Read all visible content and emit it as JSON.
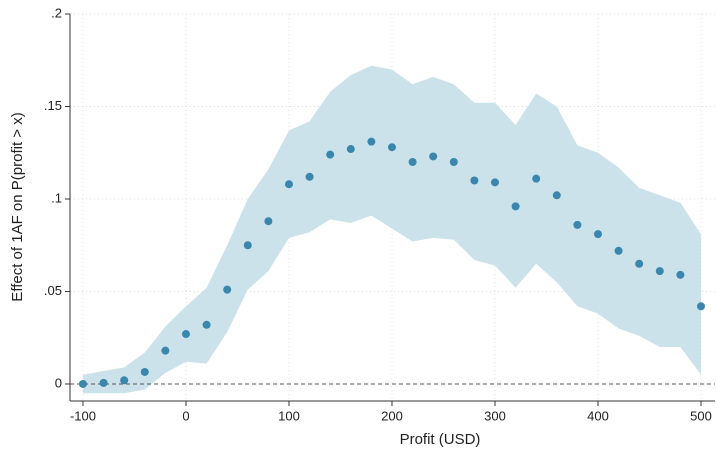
{
  "chart_data": {
    "type": "scatter",
    "x_label": "Profit (USD)",
    "y_label": "Effect of 1AF on P(profit > x)",
    "x": [
      -100,
      -80,
      -60,
      -40,
      -20,
      0,
      20,
      40,
      60,
      80,
      100,
      120,
      140,
      160,
      180,
      200,
      220,
      240,
      260,
      280,
      300,
      320,
      340,
      360,
      380,
      400,
      420,
      440,
      460,
      480,
      500
    ],
    "series": [
      {
        "color": "#3a86ad",
        "values": [
          0,
          0.0006,
          0.002,
          0.0065,
          0.018,
          0.027,
          0.032,
          0.051,
          0.075,
          0.088,
          0.108,
          0.112,
          0.124,
          0.127,
          0.131,
          0.128,
          0.12,
          0.123,
          0.12,
          0.11,
          0.109,
          0.096,
          0.111,
          0.102,
          0.086,
          0.081,
          0.072,
          0.065,
          0.061,
          0.059,
          0.042
        ]
      }
    ],
    "band": {
      "color": "#cce2eb",
      "upper": [
        0.005,
        0.007,
        0.009,
        0.017,
        0.031,
        0.042,
        0.052,
        0.075,
        0.1,
        0.116,
        0.137,
        0.142,
        0.158,
        0.167,
        0.172,
        0.17,
        0.162,
        0.166,
        0.162,
        0.152,
        0.152,
        0.14,
        0.157,
        0.15,
        0.129,
        0.125,
        0.117,
        0.106,
        0.102,
        0.098,
        0.081
      ],
      "lower": [
        -0.005,
        -0.005,
        -0.005,
        -0.003,
        0.006,
        0.012,
        0.011,
        0.028,
        0.051,
        0.061,
        0.079,
        0.082,
        0.089,
        0.087,
        0.091,
        0.084,
        0.077,
        0.079,
        0.078,
        0.067,
        0.064,
        0.052,
        0.065,
        0.055,
        0.042,
        0.038,
        0.03,
        0.026,
        0.02,
        0.02,
        0.005
      ]
    },
    "reference_line": 0,
    "xlim": [
      -112.6,
      513.6
    ],
    "ylim": [
      -0.0092,
      0.2
    ],
    "xticks": [
      -100,
      0,
      100,
      200,
      300,
      400,
      500
    ],
    "yticks": [
      0,
      {
        "value": 0.05,
        "label": ".05"
      },
      {
        "value": 0.1,
        "label": ".1"
      },
      {
        "value": 0.15,
        "label": ".15"
      },
      {
        "value": 0.2,
        "label": ".2"
      }
    ],
    "grid": true
  }
}
